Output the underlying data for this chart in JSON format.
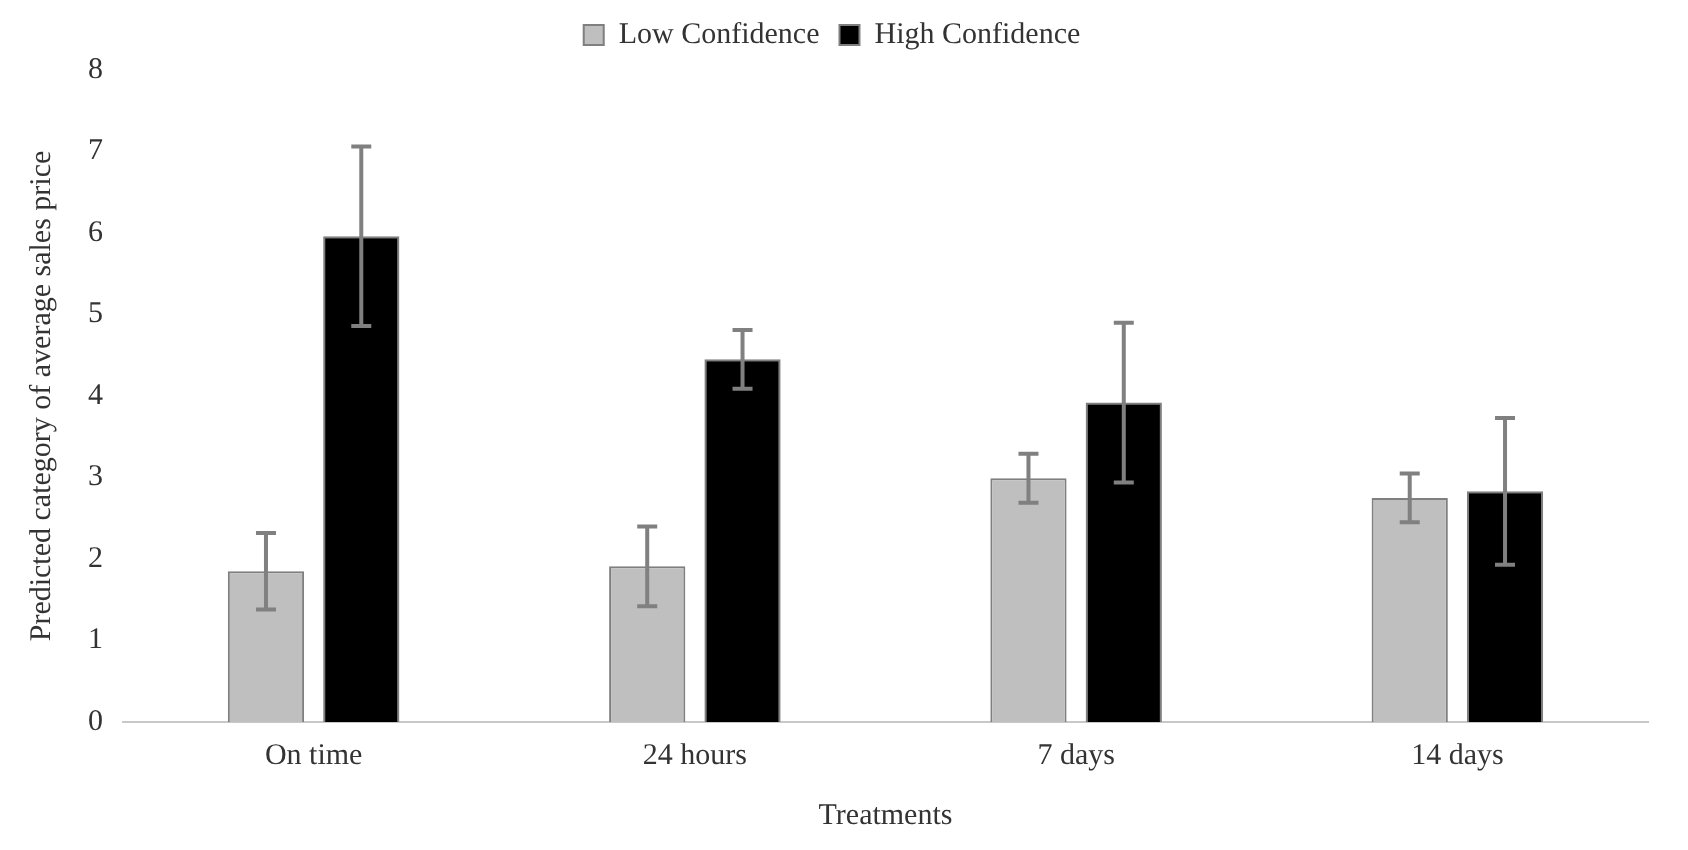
{
  "chart_data": {
    "type": "bar",
    "xlabel": "Treatments",
    "ylabel": "Predicted category of average sales price",
    "categories": [
      "On time",
      "24 hours",
      "7 days",
      "14 days"
    ],
    "series": [
      {
        "name": "Low Confidence",
        "color": "#bfbfbf",
        "values": [
          1.85,
          1.91,
          2.99,
          2.75
        ],
        "errors": [
          0.47,
          0.49,
          0.3,
          0.3
        ]
      },
      {
        "name": "High Confidence",
        "color": "#000000",
        "values": [
          5.96,
          4.45,
          3.92,
          2.83
        ],
        "errors": [
          1.1,
          0.36,
          0.98,
          0.9
        ]
      }
    ],
    "ylim": [
      0,
      8
    ],
    "yticks": [
      0,
      1,
      2,
      3,
      4,
      5,
      6,
      7,
      8
    ],
    "grid": false,
    "legend": "top"
  }
}
